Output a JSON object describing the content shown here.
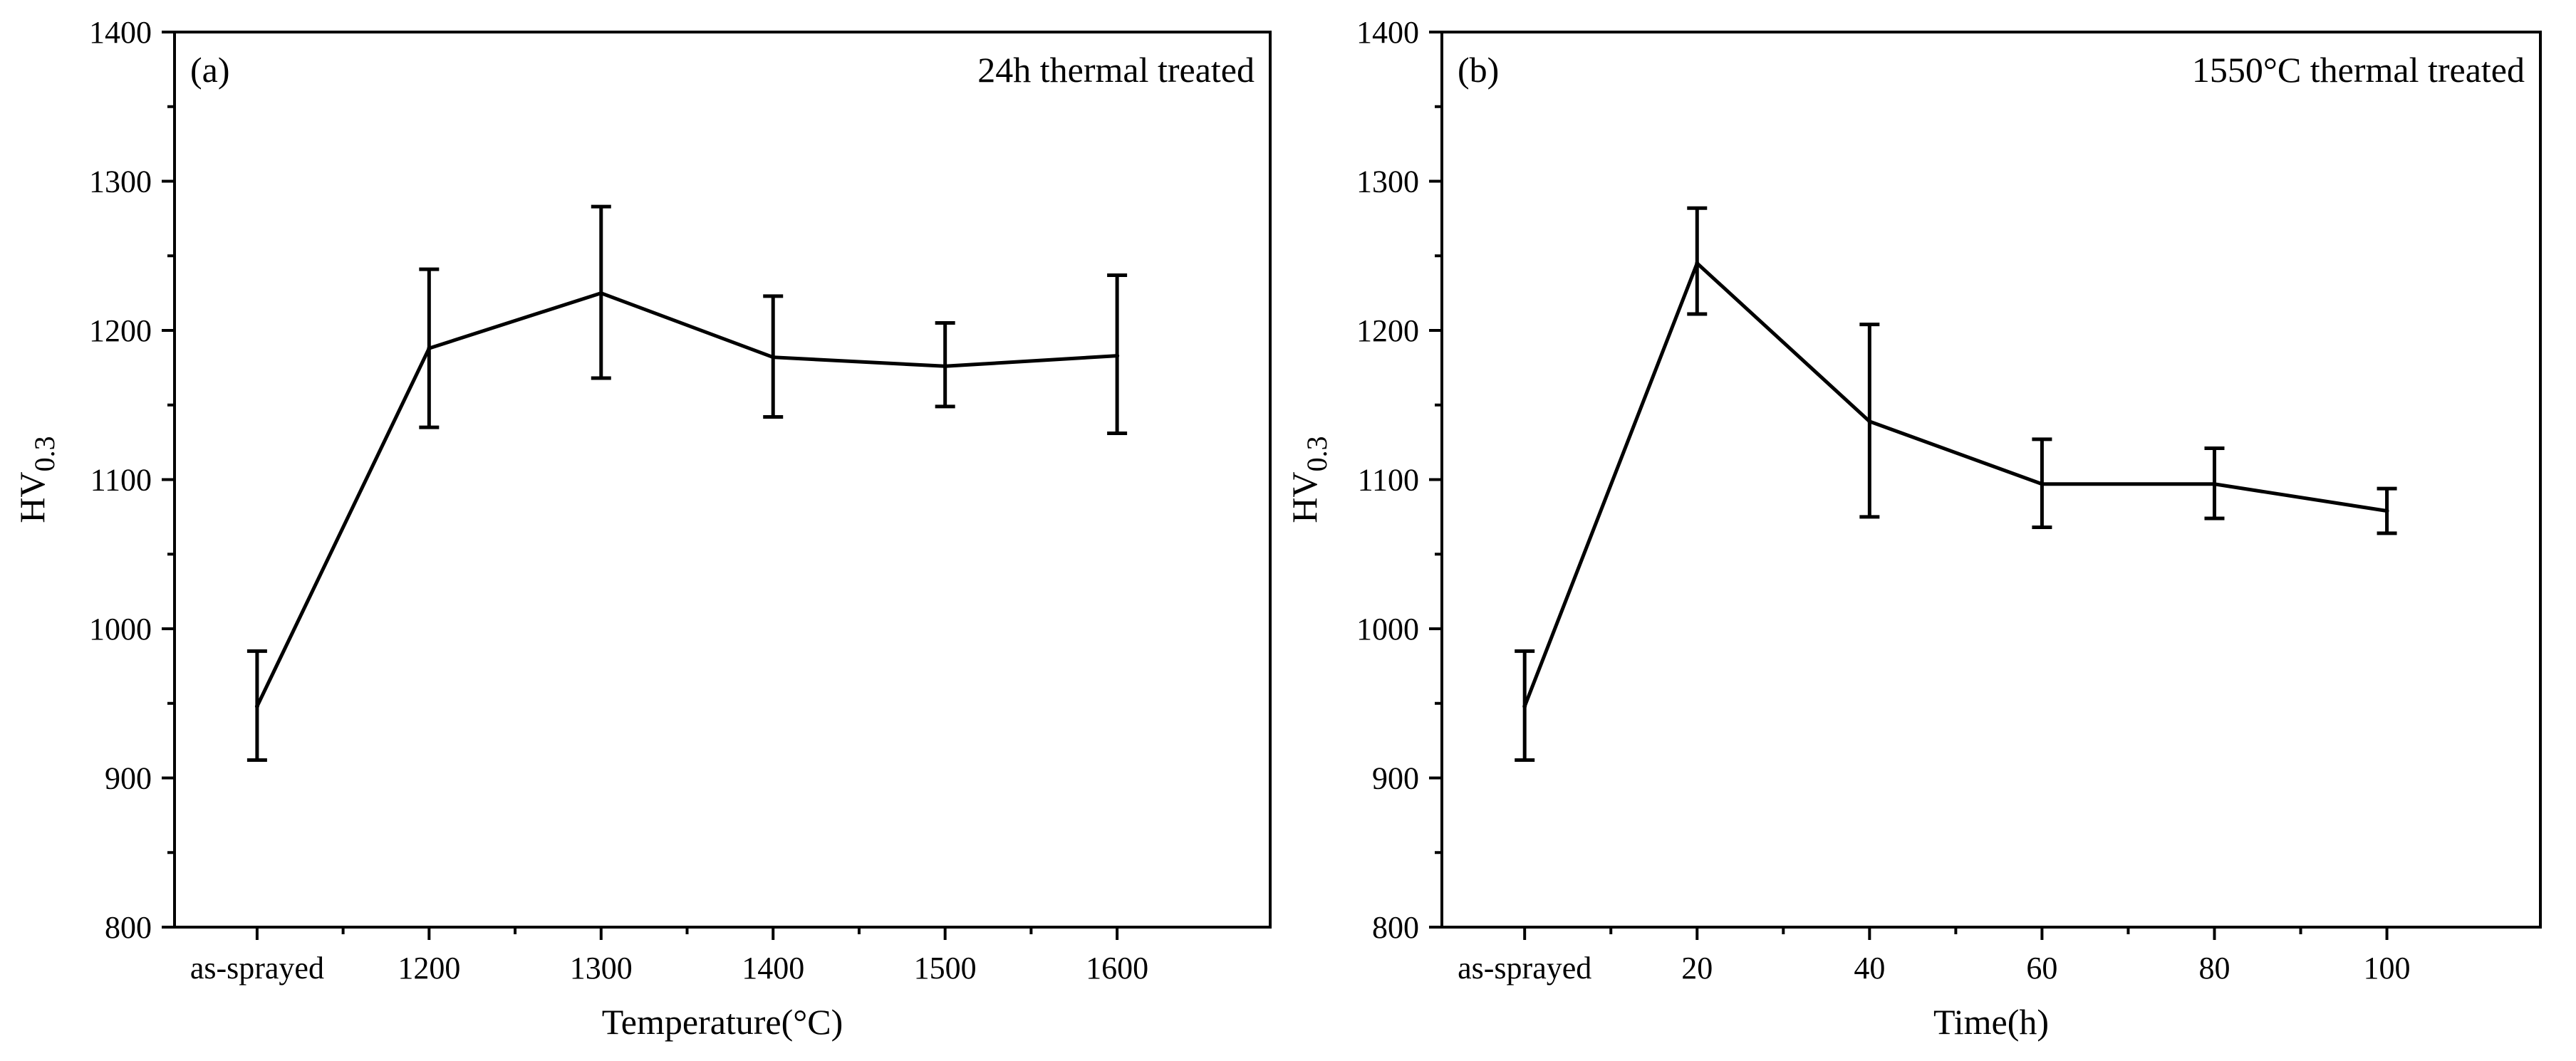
{
  "chart_data": [
    {
      "type": "line",
      "panel_label": "(a)",
      "annotation": "24h thermal treated",
      "title": "",
      "xlabel": "Temperature(°C)",
      "ylabel_main": "HV",
      "ylabel_sub": "0.3",
      "categories": [
        "as-sprayed",
        "1200",
        "1300",
        "1400",
        "1500",
        "1600"
      ],
      "values": [
        948,
        1188,
        1225,
        1182,
        1176,
        1183
      ],
      "error_low": [
        912,
        1135,
        1168,
        1142,
        1149,
        1131
      ],
      "error_high": [
        985,
        1241,
        1283,
        1223,
        1205,
        1237
      ],
      "yticks": [
        "800",
        "900",
        "1000",
        "1100",
        "1200",
        "1300",
        "1400"
      ],
      "ylim": [
        800,
        1400
      ],
      "grid": false,
      "legend": "none"
    },
    {
      "type": "line",
      "panel_label": "(b)",
      "annotation": "1550°C thermal treated",
      "title": "",
      "xlabel": "Time(h)",
      "ylabel_main": "HV",
      "ylabel_sub": "0.3",
      "categories": [
        "as-sprayed",
        "20",
        "40",
        "60",
        "80",
        "100"
      ],
      "values": [
        948,
        1245,
        1139,
        1097,
        1097,
        1079
      ],
      "error_low": [
        912,
        1211,
        1075,
        1068,
        1074,
        1064
      ],
      "error_high": [
        985,
        1282,
        1204,
        1127,
        1121,
        1094
      ],
      "yticks": [
        "800",
        "900",
        "1000",
        "1100",
        "1200",
        "1300",
        "1400"
      ],
      "ylim": [
        800,
        1400
      ],
      "grid": false,
      "legend": "none"
    }
  ]
}
